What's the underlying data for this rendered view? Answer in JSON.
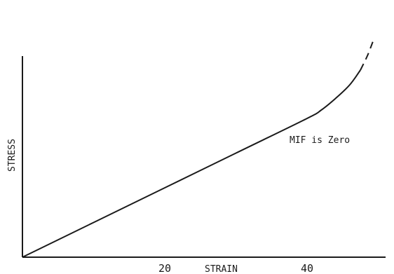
{
  "chart_data": {
    "type": "line",
    "title": "",
    "xlabel": "STRAIN",
    "ylabel": "STRESS",
    "x_ticks": [
      20,
      40
    ],
    "xlim": [
      0,
      52
    ],
    "ylim": [
      0,
      100
    ],
    "annotation": "MIF is Zero",
    "grid": false,
    "legend": "none",
    "series": [
      {
        "style": "solid",
        "x": [
          0,
          10,
          20,
          30,
          40,
          42,
          44,
          46,
          47.5
        ],
        "y": [
          0,
          16.5,
          33,
          49.5,
          66,
          70,
          75.5,
          82,
          89
        ]
      },
      {
        "style": "dashed",
        "x": [
          47.5,
          48.5,
          49.3
        ],
        "y": [
          89,
          96,
          103
        ]
      }
    ]
  }
}
